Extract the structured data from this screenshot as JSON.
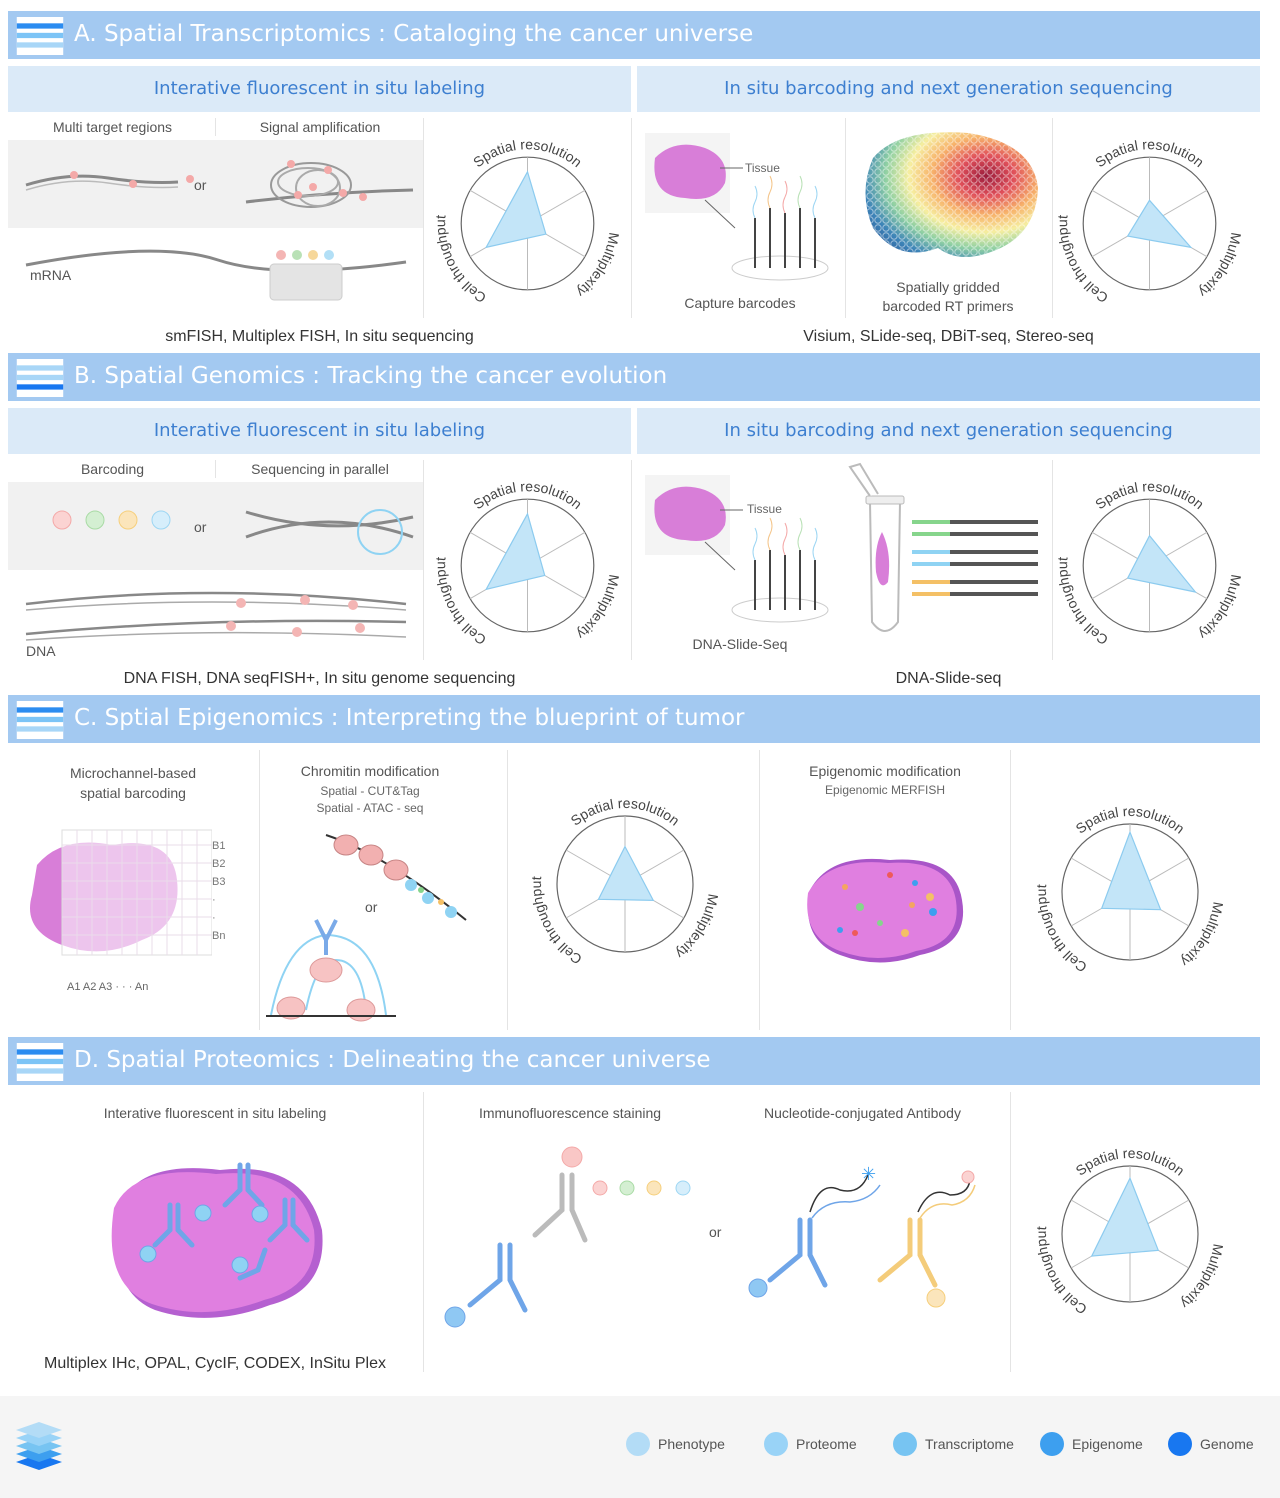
{
  "sectionA": {
    "title": "A.  Spatial Transcriptomics : Cataloging the cancer universe",
    "left_sub": "Interative fluorescent in situ labeling",
    "right_sub": "In situ barcoding and next generation sequencing",
    "multi_target": "Multi target regions",
    "signal_amp": "Signal amplification",
    "or": "or",
    "mrna": "mRNA",
    "tissue": "Tissue",
    "capture": "Capture barcodes",
    "gridded_1": "Spatially gridded",
    "gridded_2": "barcoded RT primers",
    "left_methods": "smFISH, Multiplex FISH, In situ sequencing",
    "right_methods": "Visium, SLide-seq, DBiT-seq, Stereo-seq"
  },
  "sectionB": {
    "title": "B. Spatial Genomics : Tracking the cancer evolution",
    "left_sub": "Interative fluorescent in situ labeling",
    "right_sub": "In situ barcoding and next generation sequencing",
    "barcoding": "Barcoding",
    "seq_parallel": "Sequencing in parallel",
    "or": "or",
    "dna": "DNA",
    "tissue": "Tissue",
    "slide_label": "DNA-Slide-Seq",
    "left_methods": "DNA FISH, DNA seqFISH+, In situ genome sequencing",
    "right_methods": "DNA-Slide-seq"
  },
  "sectionC": {
    "title": "C. Sptial Epigenomics : Interpreting the blueprint of tumor",
    "micro_1": "Microchannel-based",
    "micro_2": "spatial barcoding",
    "chrom": "Chromitin modification",
    "chrom_s1": "Spatial - CUT&Tag",
    "chrom_s2": "Spatial - ATAC - seq",
    "or": "or",
    "epi": "Epigenomic modification",
    "epi_s": "Epigenomic MERFISH",
    "rows": [
      "B1",
      "B2",
      "B3",
      "·",
      "·",
      "Bn"
    ],
    "cols": "A1 A2 A3  ·    ·    ·  An"
  },
  "sectionD": {
    "title": "D. Spatial Proteomics : Delineating the cancer universe",
    "left_label": "Interative fluorescent in situ labeling",
    "if_label": "Immunofluorescence staining",
    "nca_label": "Nucleotide-conjugated Antibody",
    "or": "or",
    "methods": "Multiplex IHc, OPAL, CycIF, CODEX, InSitu Plex"
  },
  "radar": {
    "top": "Spatial resolution",
    "right": "Multiplexity",
    "left": "Cell throughput"
  },
  "legend": [
    {
      "label": "Phenotype",
      "color": "#b3dcf6"
    },
    {
      "label": "Proteome",
      "color": "#99d3f7"
    },
    {
      "label": "Transcriptome",
      "color": "#77c4f2"
    },
    {
      "label": "Epigenome",
      "color": "#3d9fef"
    },
    {
      "label": "Genome",
      "color": "#1877f0"
    }
  ]
}
